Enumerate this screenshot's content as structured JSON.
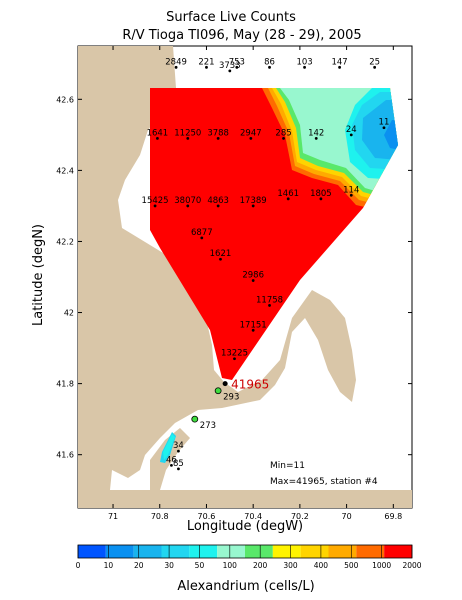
{
  "chart_data": {
    "type": "heatmap",
    "title": "Surface Live Counts",
    "subtitle": "R/V Tioga TI096, May (28 - 29), 2005",
    "xlabel": "Longitude (degW)",
    "ylabel": "Latitude (degN)",
    "xlim": [
      71.15,
      69.72
    ],
    "ylim": [
      41.45,
      42.75
    ],
    "x_ticks": [
      "71",
      "70.8",
      "70.6",
      "70.4",
      "70.2",
      "70",
      "69.8"
    ],
    "x_tick_values": [
      71,
      70.8,
      70.6,
      70.4,
      70.2,
      70,
      69.8
    ],
    "y_ticks": [
      "41.6",
      "41.8",
      "42",
      "42.2",
      "42.4",
      "42.6"
    ],
    "y_tick_values": [
      41.6,
      41.8,
      42,
      42.2,
      42.4,
      42.6
    ],
    "grid": false,
    "colorbar": {
      "label": "Alexandrium (cells/L)",
      "ticks": [
        "0",
        "10",
        "20",
        "30",
        "50",
        "100",
        "200",
        "300",
        "400",
        "500",
        "1000",
        "2000"
      ],
      "colors": [
        "#0055ff",
        "#0a90f0",
        "#19b4ee",
        "#22d6f0",
        "#1ef2ee",
        "#98f7cf",
        "#59e86a",
        "#fff300",
        "#ffd400",
        "#ffaa00",
        "#ff6a00",
        "#ff0000"
      ]
    },
    "stations": [
      {
        "lon": 70.73,
        "lat": 42.69,
        "label": "2849"
      },
      {
        "lon": 70.6,
        "lat": 42.69,
        "label": "221"
      },
      {
        "lon": 70.47,
        "lat": 42.69,
        "label": "753"
      },
      {
        "lon": 70.5,
        "lat": 42.68,
        "label": "3733"
      },
      {
        "lon": 70.33,
        "lat": 42.69,
        "label": "86"
      },
      {
        "lon": 70.18,
        "lat": 42.69,
        "label": "103"
      },
      {
        "lon": 70.03,
        "lat": 42.69,
        "label": "147"
      },
      {
        "lon": 69.88,
        "lat": 42.69,
        "label": "25"
      },
      {
        "lon": 70.81,
        "lat": 42.49,
        "label": "1641"
      },
      {
        "lon": 70.68,
        "lat": 42.49,
        "label": "11250"
      },
      {
        "lon": 70.55,
        "lat": 42.49,
        "label": "3788"
      },
      {
        "lon": 70.41,
        "lat": 42.49,
        "label": "2947"
      },
      {
        "lon": 70.27,
        "lat": 42.49,
        "label": "285"
      },
      {
        "lon": 70.13,
        "lat": 42.49,
        "label": "142"
      },
      {
        "lon": 69.98,
        "lat": 42.5,
        "label": "24"
      },
      {
        "lon": 69.84,
        "lat": 42.52,
        "label": "11"
      },
      {
        "lon": 70.82,
        "lat": 42.3,
        "label": "15425"
      },
      {
        "lon": 70.68,
        "lat": 42.3,
        "label": "38070"
      },
      {
        "lon": 70.55,
        "lat": 42.3,
        "label": "4863"
      },
      {
        "lon": 70.4,
        "lat": 42.3,
        "label": "17389"
      },
      {
        "lon": 70.25,
        "lat": 42.32,
        "label": "1461"
      },
      {
        "lon": 70.11,
        "lat": 42.32,
        "label": "1805"
      },
      {
        "lon": 69.98,
        "lat": 42.33,
        "label": "114"
      },
      {
        "lon": 70.62,
        "lat": 42.21,
        "label": "6877"
      },
      {
        "lon": 70.54,
        "lat": 42.15,
        "label": "1621"
      },
      {
        "lon": 70.4,
        "lat": 42.09,
        "label": "2986"
      },
      {
        "lon": 70.33,
        "lat": 42.02,
        "label": "11758"
      },
      {
        "lon": 70.4,
        "lat": 41.95,
        "label": "17151"
      },
      {
        "lon": 70.48,
        "lat": 41.87,
        "label": "13225"
      },
      {
        "lon": 70.52,
        "lat": 41.8,
        "label": "41965",
        "highlight": true
      },
      {
        "lon": 70.55,
        "lat": 41.78,
        "label": "293"
      },
      {
        "lon": 70.65,
        "lat": 41.7,
        "label": "273"
      },
      {
        "lon": 70.72,
        "lat": 41.61,
        "label": "34"
      },
      {
        "lon": 70.75,
        "lat": 41.57,
        "label": "46"
      },
      {
        "lon": 70.72,
        "lat": 41.56,
        "label": "85"
      }
    ],
    "annotations": [
      "Min=11",
      "Max=41965, station #4"
    ]
  }
}
